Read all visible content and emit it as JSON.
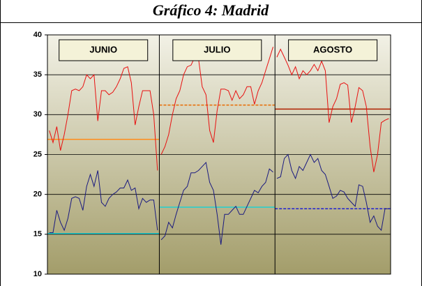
{
  "chart_data": {
    "type": "line",
    "title": "Gráfico 4: Madrid",
    "ylim": [
      10,
      40
    ],
    "yticks": [
      10,
      15,
      20,
      25,
      30,
      35,
      40
    ],
    "grid": true,
    "panels": [
      {
        "label": "JUNIO",
        "series": [
          {
            "color": "#e81010",
            "values": [
              28,
              26.5,
              28.5,
              25.5,
              27.5,
              30,
              33,
              33.2,
              33,
              33.5,
              35,
              34.5,
              35,
              29.2,
              33,
              33,
              32.5,
              32.8,
              33.5,
              34.5,
              35.8,
              36,
              34,
              28.7,
              31,
              33,
              33,
              33,
              30,
              23
            ]
          },
          {
            "color": "#1a1a80",
            "values": [
              15.2,
              15.2,
              18,
              16.5,
              15.5,
              17,
              19.5,
              19.7,
              19.5,
              18,
              21,
              22.5,
              21,
              23,
              19,
              18.5,
              19.5,
              20,
              20.3,
              20.8,
              20.8,
              21.8,
              20.5,
              20.8,
              18.2,
              19.5,
              19,
              19.3,
              19.3,
              15.5
            ]
          }
        ],
        "averages": [
          {
            "color": "#ff8c1a",
            "value": 26.9,
            "dashed": false
          },
          {
            "color": "#20d0d0",
            "value": 15.1,
            "dashed": false
          }
        ]
      },
      {
        "label": "JULIO",
        "series": [
          {
            "color": "#e81010",
            "values": [
              25,
              26,
              27.5,
              30,
              32,
              33,
              35,
              36,
              36.2,
              37.2,
              37,
              33.5,
              32.5,
              28,
              26.5,
              30.5,
              33.2,
              33.2,
              33,
              31.8,
              33,
              32,
              32.5,
              33.5,
              33.5,
              31.3,
              33,
              34,
              35.5,
              37,
              38.5
            ]
          },
          {
            "color": "#1a1a80",
            "values": [
              14.3,
              14.8,
              16.5,
              15.8,
              17.5,
              19,
              20.5,
              21,
              22.7,
              22.7,
              23,
              23.5,
              24,
              21.5,
              20.5,
              17.5,
              13.7,
              17.5,
              17.5,
              18,
              18.5,
              17.5,
              17.5,
              18.5,
              19.5,
              20.5,
              20.2,
              21,
              21.5,
              23.2,
              22.8
            ]
          }
        ],
        "averages": [
          {
            "color": "#e86a00",
            "value": 31.2,
            "dashed": true
          },
          {
            "color": "#20d0d0",
            "value": 18.4,
            "dashed": false
          }
        ]
      },
      {
        "label": "AGOSTO",
        "series": [
          {
            "color": "#e81010",
            "values": [
              37.2,
              38.2,
              37.2,
              36.2,
              35,
              36,
              34.5,
              35.5,
              35,
              35.5,
              36.3,
              35.5,
              36.7,
              35.5,
              29,
              31,
              32,
              33.8,
              34,
              33.7,
              29,
              31,
              33.4,
              33,
              31,
              26,
              22.8,
              25,
              29,
              29.3,
              29.5
            ]
          },
          {
            "color": "#1a1a80",
            "values": [
              22,
              22.2,
              24.5,
              25,
              23,
              22,
              23.5,
              23,
              24,
              25,
              24,
              24.5,
              23,
              22.5,
              21,
              19.5,
              19.8,
              20.5,
              20.3,
              19.5,
              19,
              18.5,
              21.2,
              21,
              19,
              16.5,
              17.3,
              16,
              15.5,
              18.2,
              18.2
            ]
          }
        ],
        "averages": [
          {
            "color": "#b02000",
            "value": 30.7,
            "dashed": false
          },
          {
            "color": "#2020d0",
            "value": 18.2,
            "dashed": true
          }
        ]
      }
    ]
  }
}
